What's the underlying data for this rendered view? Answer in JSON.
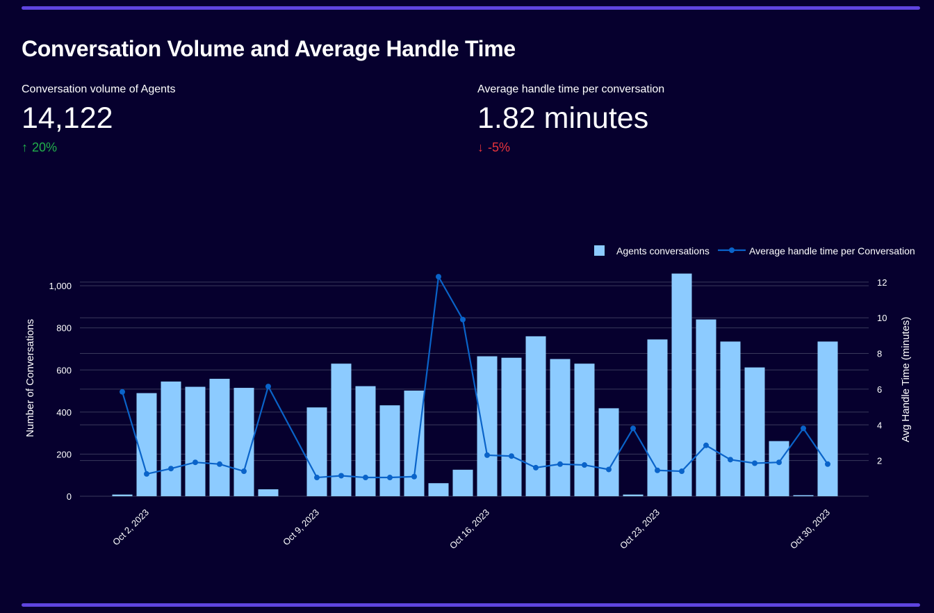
{
  "colors": {
    "background": "#06002e",
    "accent_rule": "#5f45e0",
    "bar": "#8ccbff",
    "line": "#0a63c9",
    "grid": "#3a3a5c",
    "up": "#22b04b",
    "down": "#e8333c"
  },
  "header": {
    "title": "Conversation Volume and Average Handle Time"
  },
  "kpis": {
    "volume": {
      "label": "Conversation volume of Agents",
      "value": "14,122",
      "delta": "20%",
      "direction": "up",
      "arrow_icon": "arrow-up-icon"
    },
    "handle_time": {
      "label": "Average handle time per conversation",
      "value": "1.82 minutes",
      "delta": "-5%",
      "direction": "down",
      "arrow_icon": "arrow-down-icon"
    }
  },
  "chart_data": {
    "type": "bar+line",
    "x": [
      "Oct 1, 2023",
      "Oct 2, 2023",
      "Oct 3, 2023",
      "Oct 4, 2023",
      "Oct 5, 2023",
      "Oct 6, 2023",
      "Oct 7, 2023",
      "Oct 8, 2023",
      "Oct 9, 2023",
      "Oct 10, 2023",
      "Oct 11, 2023",
      "Oct 12, 2023",
      "Oct 13, 2023",
      "Oct 14, 2023",
      "Oct 15, 2023",
      "Oct 16, 2023",
      "Oct 17, 2023",
      "Oct 18, 2023",
      "Oct 19, 2023",
      "Oct 20, 2023",
      "Oct 21, 2023",
      "Oct 22, 2023",
      "Oct 23, 2023",
      "Oct 24, 2023",
      "Oct 25, 2023",
      "Oct 26, 2023",
      "Oct 27, 2023",
      "Oct 28, 2023",
      "Oct 29, 2023",
      "Oct 30, 2023",
      "Oct 31, 2023"
    ],
    "x_tick_labels": [
      "Oct 2, 2023",
      "Oct 9, 2023",
      "Oct 16, 2023",
      "Oct 23, 2023",
      "Oct 30, 2023"
    ],
    "series": [
      {
        "name": "Agents conversations",
        "type": "bar",
        "axis": "left",
        "values": [
          8,
          490,
          545,
          520,
          558,
          515,
          33,
          null,
          422,
          630,
          523,
          432,
          502,
          62,
          126,
          665,
          658,
          760,
          652,
          630,
          418,
          8,
          745,
          1058,
          840,
          735,
          612,
          262,
          5,
          735,
          null
        ]
      },
      {
        "name": "Average handle time per Conversation",
        "type": "line",
        "axis": "right",
        "values": [
          5.85,
          1.25,
          1.55,
          1.9,
          1.8,
          1.4,
          6.15,
          null,
          1.05,
          1.15,
          1.05,
          1.05,
          1.1,
          12.3,
          9.9,
          2.3,
          2.25,
          1.6,
          1.8,
          1.75,
          1.5,
          3.8,
          1.45,
          1.4,
          2.85,
          2.05,
          1.85,
          1.9,
          3.8,
          1.8,
          null
        ]
      }
    ],
    "ylabel_left": "Number of Conversations",
    "ylabel_right": "Avg Handle Time (minutes)",
    "ylim_left": [
      0,
      1060
    ],
    "ylim_right": [
      0,
      12.5
    ],
    "yticks_left": [
      0,
      200,
      400,
      600,
      800,
      1000
    ],
    "yticks_right": [
      2,
      4,
      6,
      8,
      10,
      12
    ],
    "grid": true,
    "legend": "top-right"
  }
}
